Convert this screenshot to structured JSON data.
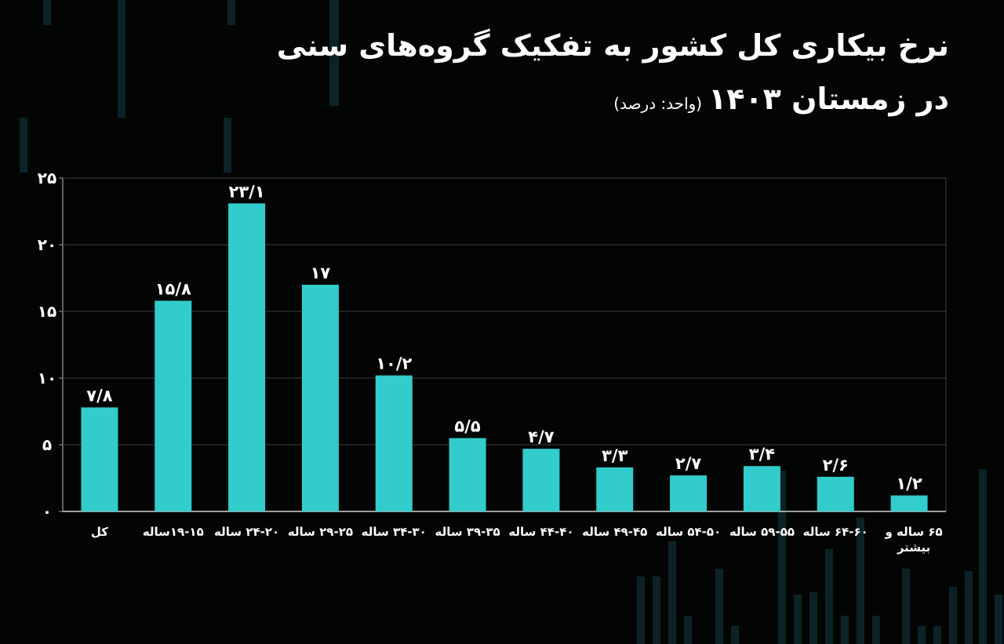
{
  "title_line1": "نرخ بیکاری کل کشور به تفکیک گروه‌های سنی",
  "title_line2": "در زمستان ۱۴۰۳",
  "unit_note": "(واحد: درصد)",
  "colors": {
    "bar": "#33cccc",
    "background": "#030505",
    "grid": "#3a3f40",
    "text": "#ffffff"
  },
  "chart_data": {
    "type": "bar",
    "title": "نرخ بیکاری کل کشور به تفکیک گروه‌های سنی در زمستان ۱۴۰۳",
    "xlabel": "",
    "ylabel": "",
    "ylim": [
      0,
      25
    ],
    "yticks": [
      0,
      5,
      10,
      15,
      20,
      25
    ],
    "ytick_labels": [
      "۰",
      "۵",
      "۱۰",
      "۱۵",
      "۲۰",
      "۲۵"
    ],
    "grid": true,
    "categories": [
      "کل",
      "۱۹-۱۵ساله",
      "۲۴-۲۰ ساله",
      "۲۹-۲۵ ساله",
      "۳۴-۳۰ ساله",
      "۳۹-۳۵ ساله",
      "۴۴-۴۰ ساله",
      "۴۹-۴۵ ساله",
      "۵۴-۵۰ ساله",
      "۵۹-۵۵ ساله",
      "۶۴-۶۰ ساله",
      "۶۵ ساله و بیشتر"
    ],
    "values": [
      7.8,
      15.8,
      23.1,
      17,
      10.2,
      5.5,
      4.7,
      3.3,
      2.7,
      3.4,
      2.6,
      1.2
    ],
    "value_labels": [
      "۷/۸",
      "۱۵/۸",
      "۲۳/۱",
      "۱۷",
      "۱۰/۲",
      "۵/۵",
      "۴/۷",
      "۳/۳",
      "۲/۷",
      "۳/۴",
      "۲/۶",
      "۱/۲"
    ]
  }
}
